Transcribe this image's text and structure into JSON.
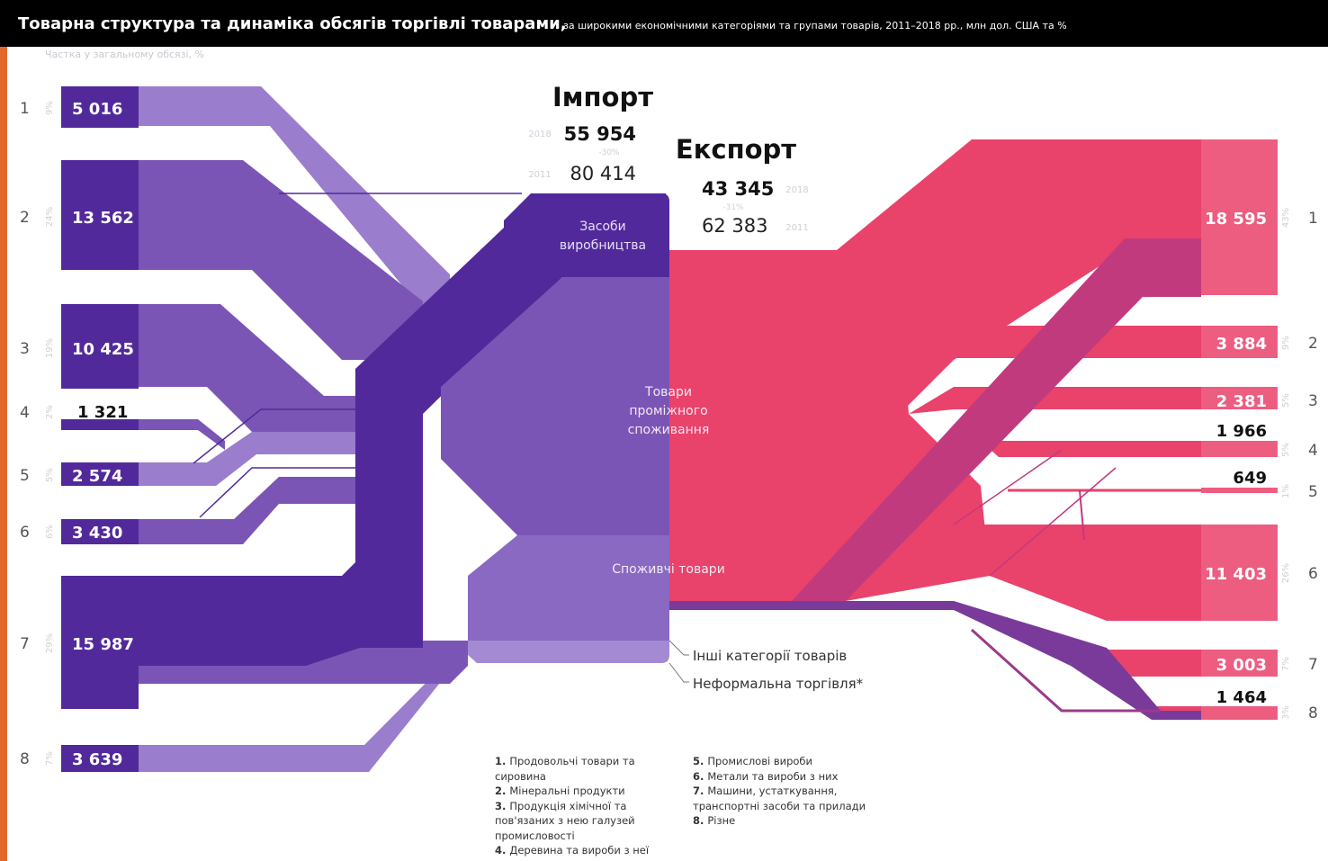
{
  "header": {
    "title": "Товарна структура та динаміка обсягів торгівлі товарами,",
    "subtitle": "за широкими економічними категоріями та групами товарів, 2011–2018 рр., млн дол. США та %",
    "share_caption": "Частка у загальному обсязі, %"
  },
  "import": {
    "heading": "Імпорт",
    "year_new": "2018",
    "value_new": "55 954",
    "change": "-30%",
    "year_old": "2011",
    "value_old": "80 414"
  },
  "export": {
    "heading": "Експорт",
    "year_new": "2018",
    "value_new": "43 345",
    "change": "-31%",
    "year_old": "2011",
    "value_old": "62 383"
  },
  "categories": {
    "capital": "Засоби виробництва",
    "intermediate": "Товари проміжного споживання",
    "consumer": "Споживчі товари",
    "other": "Інші категорії товарів",
    "informal": "Неформальна торгівля*"
  },
  "import_groups": [
    {
      "num": "1",
      "value": "5 016",
      "share": "9%"
    },
    {
      "num": "2",
      "value": "13 562",
      "share": "24%"
    },
    {
      "num": "3",
      "value": "10 425",
      "share": "19%"
    },
    {
      "num": "4",
      "value": "1 321",
      "share": "2%"
    },
    {
      "num": "5",
      "value": "2 574",
      "share": "5%"
    },
    {
      "num": "6",
      "value": "3 430",
      "share": "6%"
    },
    {
      "num": "7",
      "value": "15 987",
      "share": "29%"
    },
    {
      "num": "8",
      "value": "3 639",
      "share": "7%"
    }
  ],
  "export_groups": [
    {
      "num": "1",
      "value": "18 595",
      "share": "43%"
    },
    {
      "num": "2",
      "value": "3 884",
      "share": "9%"
    },
    {
      "num": "3",
      "value": "2 381",
      "share": "5%"
    },
    {
      "num": "4",
      "value": "1 966",
      "share": "5%"
    },
    {
      "num": "5",
      "value": "649",
      "share": "1%"
    },
    {
      "num": "6",
      "value": "11 403",
      "share": "26%"
    },
    {
      "num": "7",
      "value": "3 003",
      "share": "7%"
    },
    {
      "num": "8",
      "value": "1 464",
      "share": "3%"
    }
  ],
  "legend": [
    {
      "num": "1.",
      "text": "Продовольчі товари та сировина"
    },
    {
      "num": "2.",
      "text": "Мінеральні продукти"
    },
    {
      "num": "3.",
      "text": "Продукція хімічної та пов'язаних з нею галузей промисловості"
    },
    {
      "num": "4.",
      "text": "Деревина та вироби з неї"
    },
    {
      "num": "5.",
      "text": "Промислові вироби"
    },
    {
      "num": "6.",
      "text": "Метали та вироби з них"
    },
    {
      "num": "7.",
      "text": "Машини, устаткування, транспортні засоби та прилади"
    },
    {
      "num": "8.",
      "text": "Різне"
    }
  ],
  "colors": {
    "import_dark": "#52299a",
    "import_mid": "#7b55b5",
    "import_light": "#9a7dcc",
    "export_main": "#e9426b",
    "export_dark": "#c23a7e",
    "export_purple": "#7a3a9a"
  }
}
